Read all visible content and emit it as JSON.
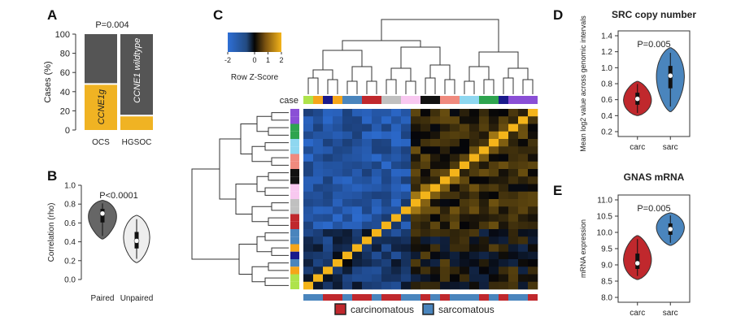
{
  "panels": {
    "A": {
      "letter": "A"
    },
    "B": {
      "letter": "B"
    },
    "C": {
      "letter": "C"
    },
    "D": {
      "letter": "D"
    },
    "E": {
      "letter": "E"
    }
  },
  "colors": {
    "ccne1g": "#f0b323",
    "wildtype": "#555555",
    "carc": "#c0282d",
    "sarc": "#4a85bd",
    "paired": "#666666",
    "unpaired": "#eeeeee"
  },
  "chart_data": [
    {
      "id": "A",
      "type": "bar",
      "ylabel": "Cases (%)",
      "ylim": [
        0,
        100
      ],
      "yticks": [
        "0",
        "20",
        "40",
        "60",
        "80",
        "100"
      ],
      "categories": [
        "OCS",
        "HGSOC"
      ],
      "series": [
        {
          "name": "CCNE1g",
          "values": [
            48,
            15
          ]
        },
        {
          "name": "CCNE1 wildtype",
          "values": [
            52,
            85
          ]
        }
      ],
      "bar_labels": [
        "CCNE1g",
        "CCNE1 wildtype"
      ],
      "annotation": "P=0.004"
    },
    {
      "id": "B",
      "type": "violin",
      "ylabel": "Correlation (rho)",
      "ylim": [
        0,
        1
      ],
      "yticks": [
        "0.0",
        "0.2",
        "0.4",
        "0.6",
        "0.8",
        "1.0"
      ],
      "categories": [
        "Paired",
        "Unpaired"
      ],
      "medians": [
        0.7,
        0.41
      ],
      "ranges": [
        [
          0.43,
          0.84
        ],
        [
          0.18,
          0.68
        ]
      ],
      "annotation": "P<0.0001"
    },
    {
      "id": "C",
      "type": "heatmap",
      "color_key_title": "Row Z-Score",
      "color_key_ticks": [
        "-2",
        "0",
        "1",
        "2"
      ],
      "column_annotation_label": "case",
      "legend": [
        "carcinomatous",
        "sarcomatous"
      ]
    },
    {
      "id": "D",
      "type": "violin",
      "title": "SRC copy number",
      "ylabel": "Mean log2 value across genomic intervals",
      "ylim": [
        0.2,
        1.4
      ],
      "yticks": [
        "0.2",
        "0.4",
        "0.6",
        "0.8",
        "1.0",
        "1.2",
        "1.4"
      ],
      "categories": [
        "carc",
        "sarc"
      ],
      "medians": [
        0.61,
        0.9
      ],
      "ranges": [
        [
          0.4,
          0.83
        ],
        [
          0.45,
          1.25
        ]
      ],
      "annotation": "P=0.005"
    },
    {
      "id": "E",
      "type": "violin",
      "title": "GNAS mRNA",
      "ylabel": "mRNA expression",
      "ylim": [
        8.0,
        11.0
      ],
      "yticks": [
        "8.0",
        "8.5",
        "9.0",
        "9.5",
        "10.0",
        "10.5",
        "11.0"
      ],
      "categories": [
        "carc",
        "sarc"
      ],
      "medians": [
        9.05,
        10.1
      ],
      "ranges": [
        [
          8.55,
          9.9
        ],
        [
          9.6,
          10.6
        ]
      ],
      "annotation": "P=0.005"
    }
  ]
}
